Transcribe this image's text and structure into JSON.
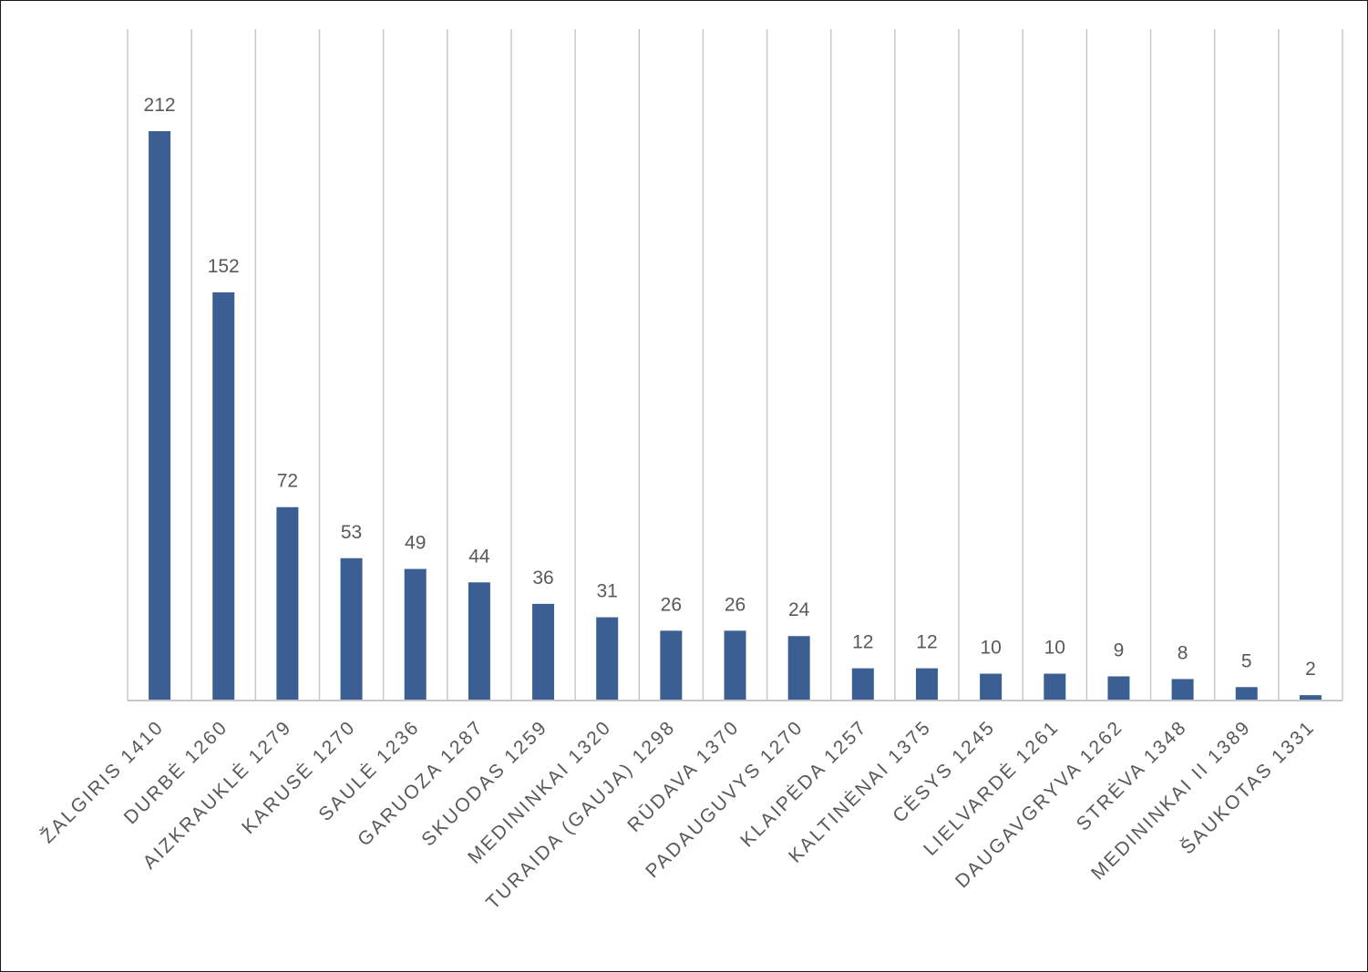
{
  "chart_data": {
    "type": "bar",
    "title": "",
    "xlabel": "",
    "ylabel": "",
    "ylim": [
      0,
      240
    ],
    "grid": "vertical",
    "legend": "none",
    "bar_color": "#3b5f93",
    "categories": [
      "ŽALGIRIS 1410",
      "DURBĖ 1260",
      "AIZKRAUKLĖ 1279",
      "KARUSĖ 1270",
      "SAULĖ 1236",
      "GARUOZA 1287",
      "SKUODAS 1259",
      "MEDININKAI 1320",
      "TURAIDA (GAUJA) 1298",
      "RŪDAVA 1370",
      "PADAUGUVYS 1270",
      "KLAIPĖDA 1257",
      "KALTINĖNAI 1375",
      "CĖSYS 1245",
      "LIELVARDĖ 1261",
      "DAUGAVGRYVA 1262",
      "STRĖVA 1348",
      "MEDININKAI II 1389",
      "ŠAUKOTAS 1331"
    ],
    "values": [
      212,
      152,
      72,
      53,
      49,
      44,
      36,
      31,
      26,
      26,
      24,
      12,
      12,
      10,
      10,
      9,
      8,
      5,
      2
    ]
  }
}
